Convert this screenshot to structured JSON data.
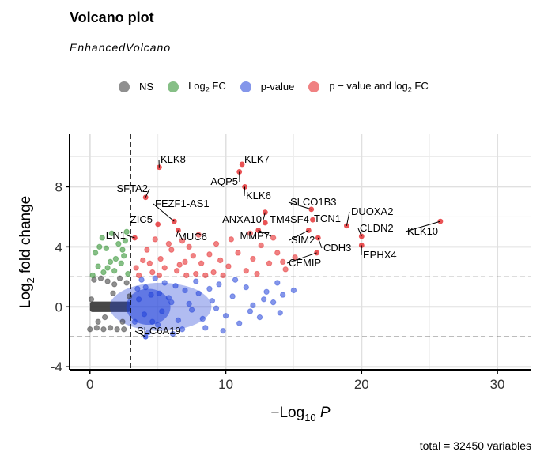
{
  "title": "Volcano plot",
  "subtitle": "EnhancedVolcano",
  "caption": "total = 32450 variables",
  "legend": [
    {
      "key": "NS",
      "label": "NS",
      "sub": "",
      "after": "",
      "color": "#333333"
    },
    {
      "key": "FC",
      "label": "Log",
      "sub": "2",
      "after": " FC",
      "color": "#228B22"
    },
    {
      "key": "P",
      "label": "p-value",
      "sub": "",
      "after": "",
      "color": "#1F3FD8"
    },
    {
      "key": "PFC",
      "label": "p − value and log",
      "sub": "2",
      "after": " FC",
      "color": "#E31A1C"
    }
  ],
  "chart_data": {
    "type": "scatter",
    "title": "Volcano plot",
    "subtitle": "EnhancedVolcano",
    "xlabel": "−Log10 P",
    "ylabel": "Log2 fold change",
    "xlim": [
      -1.5,
      32.5
    ],
    "ylim": [
      -4.2,
      11.5
    ],
    "xticks": [
      0,
      10,
      20,
      30
    ],
    "yticks": [
      -4,
      0,
      4,
      8
    ],
    "cutoff_x": 3,
    "cutoff_y": [
      -2,
      2
    ],
    "grid": true,
    "legend_position": "top",
    "colors": {
      "NS": "#333333",
      "FC": "#228B22",
      "P": "#1F3FD8",
      "PFC": "#E31A1C"
    },
    "labeled_points": [
      {
        "name": "KLK8",
        "x": 5.1,
        "y": 9.3
      },
      {
        "name": "KLK7",
        "x": 11.2,
        "y": 9.5
      },
      {
        "name": "AQP5",
        "x": 11.0,
        "y": 9.0
      },
      {
        "name": "SFTA2",
        "x": 4.1,
        "y": 7.3
      },
      {
        "name": "KLK6",
        "x": 11.4,
        "y": 8.0
      },
      {
        "name": "FEZF1-AS1",
        "x": 6.2,
        "y": 5.7
      },
      {
        "name": "SLCO1B3",
        "x": 16.3,
        "y": 6.5
      },
      {
        "name": "DUOXA2",
        "x": 18.9,
        "y": 5.4
      },
      {
        "name": "ZIC5",
        "x": 5.0,
        "y": 5.5
      },
      {
        "name": "ANXA10",
        "x": 12.9,
        "y": 6.3
      },
      {
        "name": "TM4SF4",
        "x": 12.9,
        "y": 5.6
      },
      {
        "name": "TCN1",
        "x": 16.4,
        "y": 5.8
      },
      {
        "name": "CLDN2",
        "x": 20.0,
        "y": 4.7
      },
      {
        "name": "KLK10",
        "x": 25.8,
        "y": 5.7
      },
      {
        "name": "MMP7",
        "x": 12.4,
        "y": 5.1
      },
      {
        "name": "MUC6",
        "x": 6.5,
        "y": 5.1
      },
      {
        "name": "EN1",
        "x": 3.3,
        "y": 4.6
      },
      {
        "name": "SIM2",
        "x": 16.1,
        "y": 5.1
      },
      {
        "name": "CDH3",
        "x": 16.8,
        "y": 4.6
      },
      {
        "name": "EPHX4",
        "x": 20.0,
        "y": 4.1
      },
      {
        "name": "CEMIP",
        "x": 16.7,
        "y": 3.6
      },
      {
        "name": "SLC6A19",
        "x": 4.1,
        "y": -2.0
      }
    ],
    "points": {
      "PFC": [
        [
          5.2,
          3.2
        ],
        [
          5.5,
          2.6
        ],
        [
          6.0,
          3.8
        ],
        [
          6.4,
          2.4
        ],
        [
          7.0,
          3.0
        ],
        [
          7.3,
          4.0
        ],
        [
          7.8,
          2.2
        ],
        [
          8.2,
          2.9
        ],
        [
          8.8,
          3.5
        ],
        [
          9.1,
          2.3
        ],
        [
          9.6,
          3.1
        ],
        [
          10.2,
          2.7
        ],
        [
          10.9,
          3.6
        ],
        [
          11.5,
          2.4
        ],
        [
          12.0,
          3.2
        ],
        [
          12.6,
          4.1
        ],
        [
          13.2,
          2.9
        ],
        [
          13.8,
          3.6
        ],
        [
          14.4,
          2.5
        ],
        [
          15.1,
          3.3
        ],
        [
          4.2,
          3.8
        ],
        [
          4.6,
          2.3
        ],
        [
          3.4,
          2.6
        ],
        [
          3.9,
          3.1
        ],
        [
          4.8,
          4.5
        ],
        [
          6.8,
          4.4
        ],
        [
          8.0,
          4.8
        ],
        [
          9.3,
          4.2
        ],
        [
          10.4,
          4.5
        ],
        [
          7.6,
          3.4
        ],
        [
          6.6,
          2.8
        ],
        [
          5.8,
          4.2
        ],
        [
          9.8,
          2.1
        ],
        [
          12.3,
          2.2
        ],
        [
          13.5,
          4.6
        ],
        [
          11.8,
          4.9
        ],
        [
          14.2,
          3.0
        ],
        [
          8.5,
          2.1
        ],
        [
          5.1,
          2.1
        ],
        [
          3.6,
          2.1
        ],
        [
          4.4,
          2.9
        ],
        [
          7.1,
          2.1
        ]
      ],
      "FC": [
        [
          0.2,
          2.1
        ],
        [
          0.4,
          3.6
        ],
        [
          0.6,
          2.7
        ],
        [
          0.9,
          4.6
        ],
        [
          1.0,
          2.3
        ],
        [
          1.2,
          3.9
        ],
        [
          1.5,
          3.0
        ],
        [
          1.6,
          4.9
        ],
        [
          1.8,
          2.4
        ],
        [
          2.1,
          4.2
        ],
        [
          2.3,
          2.9
        ],
        [
          2.5,
          3.4
        ],
        [
          2.6,
          4.4
        ],
        [
          2.8,
          2.2
        ],
        [
          1.9,
          3.2
        ],
        [
          0.7,
          4.0
        ],
        [
          2.7,
          5.0
        ],
        [
          1.3,
          2.6
        ],
        [
          2.4,
          3.8
        ]
      ],
      "P": [
        [
          3.5,
          1.2
        ],
        [
          4.0,
          -0.5
        ],
        [
          4.5,
          0.8
        ],
        [
          5.0,
          -1.2
        ],
        [
          5.5,
          1.6
        ],
        [
          6.0,
          0.3
        ],
        [
          6.5,
          -0.9
        ],
        [
          7.0,
          1.1
        ],
        [
          7.5,
          -0.2
        ],
        [
          8.0,
          0.9
        ],
        [
          8.5,
          -1.4
        ],
        [
          9.0,
          0.4
        ],
        [
          9.5,
          1.5
        ],
        [
          10.0,
          -0.6
        ],
        [
          10.5,
          0.7
        ],
        [
          11.0,
          -1.1
        ],
        [
          11.5,
          1.3
        ],
        [
          12.0,
          0.1
        ],
        [
          12.5,
          -0.7
        ],
        [
          13.0,
          1.0
        ],
        [
          13.5,
          0.3
        ],
        [
          14.0,
          -0.4
        ],
        [
          3.8,
          1.8
        ],
        [
          4.3,
          -1.7
        ],
        [
          4.8,
          1.9
        ],
        [
          5.3,
          -0.3
        ],
        [
          5.8,
          0.6
        ],
        [
          6.3,
          1.4
        ],
        [
          6.8,
          -1.5
        ],
        [
          7.3,
          0.2
        ],
        [
          7.8,
          1.7
        ],
        [
          8.3,
          -0.8
        ],
        [
          8.8,
          1.2
        ],
        [
          9.3,
          -0.1
        ],
        [
          10.7,
          1.8
        ],
        [
          11.8,
          -0.3
        ],
        [
          12.8,
          0.5
        ],
        [
          13.8,
          1.6
        ],
        [
          14.2,
          0.8
        ],
        [
          3.3,
          -1.0
        ],
        [
          3.6,
          0.5
        ],
        [
          4.1,
          1.3
        ],
        [
          4.6,
          -1.0
        ],
        [
          5.1,
          0.9
        ],
        [
          6.1,
          -1.8
        ],
        [
          9.8,
          -1.6
        ],
        [
          15.0,
          1.1
        ]
      ],
      "NS": [
        [
          0.0,
          -1.5
        ],
        [
          0.5,
          -1.4
        ],
        [
          1.0,
          -1.5
        ],
        [
          1.5,
          -1.4
        ],
        [
          2.0,
          -1.5
        ],
        [
          2.5,
          -1.5
        ],
        [
          0.3,
          1.8
        ],
        [
          0.8,
          1.9
        ],
        [
          1.3,
          1.7
        ],
        [
          1.8,
          1.5
        ],
        [
          2.2,
          1.9
        ],
        [
          2.7,
          1.6
        ],
        [
          0.1,
          0.5
        ],
        [
          1.1,
          -0.7
        ],
        [
          2.4,
          -1.0
        ],
        [
          0.6,
          -1.0
        ],
        [
          1.7,
          0.9
        ],
        [
          2.9,
          0.7
        ]
      ]
    }
  }
}
